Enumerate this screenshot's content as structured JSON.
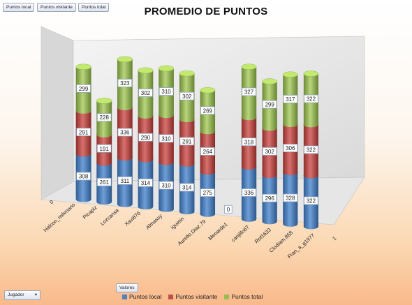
{
  "field_buttons": {
    "values": [
      "Puntos local",
      "Puntos visitante",
      "Puntos total"
    ],
    "values_area": "Valores",
    "axis_field": "Jugador"
  },
  "icons": {
    "dropdown": "chevron-down-icon"
  },
  "colors": {
    "local": "#4f81bd",
    "visitante": "#c0504d",
    "total": "#9bbb59"
  },
  "chart_data": {
    "type": "bar",
    "stacked": true,
    "style": "3d-cylinder",
    "title": "PROMEDIO DE PUNTOS",
    "categories": [
      "0",
      "Halcon_milenario",
      "Picapiz",
      "Lozcansa",
      "Xavi876",
      "Almassy",
      "iguetin",
      "Aurelio.Diaz.79",
      "Menarde1",
      "canjillo67",
      "Rof1633",
      "Clodiam.868",
      "Fran_a_g1977",
      "1"
    ],
    "series": [
      {
        "name": "Puntos local",
        "values": [
          null,
          308,
          261,
          311,
          314,
          310,
          314,
          275,
          0,
          336,
          296,
          328,
          322,
          null
        ]
      },
      {
        "name": "Puntos visitante",
        "values": [
          null,
          291,
          191,
          336,
          290,
          310,
          291,
          264,
          null,
          318,
          302,
          306,
          322,
          null
        ]
      },
      {
        "name": "Puntos total",
        "values": [
          null,
          299,
          228,
          323,
          302,
          310,
          302,
          269,
          null,
          327,
          299,
          317,
          322,
          null
        ]
      }
    ],
    "grid": false,
    "legend_position": "bottom"
  }
}
